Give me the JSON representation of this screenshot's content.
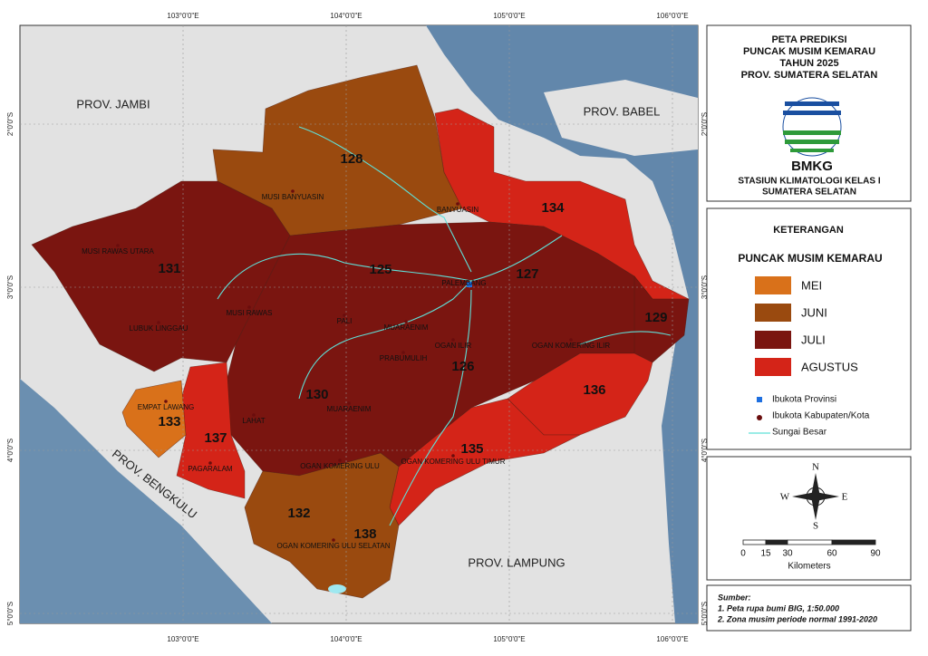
{
  "map": {
    "title": [
      "PETA PREDIKSI",
      "PUNCAK MUSIM KEMARAU",
      "TAHUN 2025",
      "PROV. SUMATERA SELATAN"
    ],
    "agency": "BMKG",
    "station": [
      "STASIUN KLIMATOLOGI KELAS I",
      "SUMATERA SELATAN"
    ],
    "longitudes": [
      "103°0'0\"E",
      "104°0'0\"E",
      "105°0'0\"E",
      "106°0'0\"E"
    ],
    "latitudes": [
      "2°0'0\"S",
      "3°0'0\"S",
      "4°0'0\"S",
      "5°0'0\"S"
    ],
    "provinces": [
      "PROV. JAMBI",
      "PROV. BABEL",
      "PROV. BENGKULU",
      "PROV. LAMPUNG"
    ],
    "zones": [
      128,
      134,
      131,
      125,
      127,
      129,
      126,
      130,
      136,
      133,
      137,
      135,
      132,
      138
    ],
    "districts": [
      "MUSI BANYUASIN",
      "BANYUASIN",
      "MUSI RAWAS UTARA",
      "MUSI RAWAS",
      "LUBUK LINGGAU",
      "PALI",
      "MUARAENIM",
      "PRABUMULIH",
      "OGAN ILIR",
      "PALEMBANG",
      "OGAN KOMERING ILIR",
      "EMPAT LAWANG",
      "LAHAT",
      "MUARAENIM",
      "PAGARALAM",
      "OGAN KOMERING ULU",
      "OGAN KOMERING ULU TIMUR",
      "OGAN KOMERING ULU SELATAN"
    ]
  },
  "legend": {
    "heading": "KETERANGAN",
    "subheading": "PUNCAK MUSIM KEMARAU",
    "classes": [
      "MEI",
      "JUNI",
      "JULI",
      "AGUSTUS"
    ],
    "symbols": [
      "Ibukota Provinsi",
      "Ibukota Kabupaten/Kota",
      "Sungai Besar"
    ]
  },
  "compass": [
    "N",
    "S",
    "W",
    "E"
  ],
  "scale": {
    "ticks": [
      0,
      15,
      30,
      60,
      90
    ],
    "unit": "Kilometers"
  },
  "source": {
    "heading": "Sumber:",
    "items": [
      "1. Peta rupa bumi BIG, 1:50.000",
      "2. Zona musim periode normal 1991-2020"
    ]
  }
}
